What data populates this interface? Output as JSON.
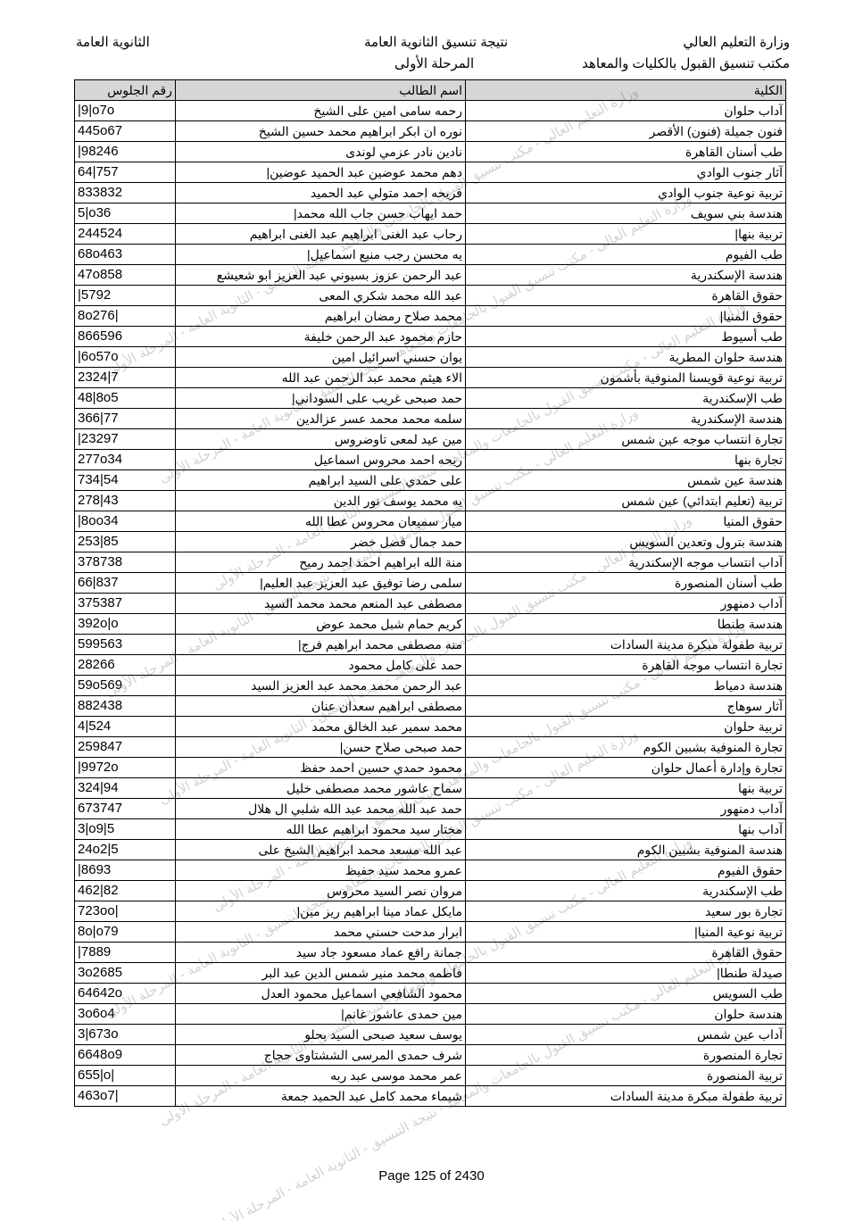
{
  "header": {
    "ministry": "وزارة التعليم العالي",
    "office": "مكتب تنسيق القبول بالكليات والمعاهد",
    "title": "نتيجة تنسيق الثانوية العامة",
    "stage": "المرحلة الأولى",
    "certificate": "الثانوية العامة"
  },
  "table": {
    "columns": {
      "seat": "رقم الجلوس",
      "name": "اسم الطالب",
      "college": "الكلية"
    },
    "rows": [
      {
        "seat": "|9|o7o",
        "name": "رحمه سامى امين على الشيخ",
        "college": "آداب حلوان"
      },
      {
        "seat": "445o67",
        "name": "نوره ان ابكر ابراهيم محمد حسين الشيخ",
        "college": "فنون جميلة (فنون) الأقصر"
      },
      {
        "seat": "|98246",
        "name": "نادين نادر عزمي لوندى",
        "college": "طب أسنان القاهرة"
      },
      {
        "seat": "64|757",
        "name": "دهم محمد عوضين عبد الحميد عوضين|",
        "college": "آثار جنوب الوادي"
      },
      {
        "seat": "833832",
        "name": "فريحه احمد متولي عبد الحميد",
        "college": "تربية نوعية جنوب الوادي"
      },
      {
        "seat": "5|o36",
        "name": "حمد ايهاب حسن جاب الله محمد|",
        "college": "هندسة بني سويف"
      },
      {
        "seat": "244524",
        "name": "رحاب عبد الغنى ابراهيم عبد الغنى ابراهيم",
        "college": "تربية بنها|"
      },
      {
        "seat": "68o463",
        "name": "يه محسن رجب منيع اسماعيل|",
        "college": "طب الفيوم"
      },
      {
        "seat": "47o858",
        "name": "عبد الرحمن عزوز بسيوني عبد العزيز ابو شعيشع",
        "college": "هندسة الإسكندرية"
      },
      {
        "seat": "|5792",
        "name": "عبد الله محمد شكري المعى",
        "college": "حقوق القاهرة"
      },
      {
        "seat": "8o276|",
        "name": "محمد صلاح رمضان ابراهيم",
        "college": "حقوق المنيا|"
      },
      {
        "seat": "866596",
        "name": "حازم محمود عبد الرحمن خليفة",
        "college": "طب أسيوط"
      },
      {
        "seat": "|6o57o",
        "name": "يوان حسني اسرائيل امين",
        "college": "هندسة حلوان المطرية"
      },
      {
        "seat": "2324|7",
        "name": "الاء هيثم محمد عبد الرحمن عبد الله",
        "college": "تربية نوعية قويسنا المنوفية بأشمون"
      },
      {
        "seat": "48|8o5",
        "name": "حمد صبحى غريب على السوداني|",
        "college": "طب الإسكندرية"
      },
      {
        "seat": "366|77",
        "name": "سلمه محمد محمد عسر عزالدين",
        "college": "هندسة الإسكندرية"
      },
      {
        "seat": "|23297",
        "name": "مين عيد لمعى تاوضروس",
        "college": "تجارة انتساب موجه عين شمس"
      },
      {
        "seat": "277o34",
        "name": "ريحه احمد محروس اسماعيل",
        "college": "تجارة بنها"
      },
      {
        "seat": "734|54",
        "name": "على حمدي على السيد ابراهيم",
        "college": "هندسة عين شمس"
      },
      {
        "seat": "278|43",
        "name": "يه محمد يوسف نور الدين",
        "college": "تربية (تعليم ابتدائي) عين شمس"
      },
      {
        "seat": "|8oo34",
        "name": "ميار سميعان محروس عطا الله",
        "college": "حقوق المنيا"
      },
      {
        "seat": "253|85",
        "name": "حمد جمال فضل خضر",
        "college": "هندسة بترول وتعدين السويس"
      },
      {
        "seat": "378738",
        "name": "منة الله ابراهيم احمد احمد رميح",
        "college": "آداب انتساب موجه الإسكندرية"
      },
      {
        "seat": "66|837",
        "name": "سلمى رضا توفيق عبد العزيز عبد العليم|",
        "college": "طب أسنان المنصورة"
      },
      {
        "seat": "375387",
        "name": "مصطفى عبد المنعم محمد محمد السيد",
        "college": "آداب دمنهور"
      },
      {
        "seat": "392o|o",
        "name": "كريم حمام شبل محمد عوض",
        "college": "هندسة طنطا"
      },
      {
        "seat": "599563",
        "name": "منه مصطفى محمد ابراهيم فرج|",
        "college": "تربية طفولة مبكرة مدينة السادات"
      },
      {
        "seat": "28266",
        "name": "حمد على كامل محمود",
        "college": "تجارة انتساب موجه القاهرة"
      },
      {
        "seat": "59o569",
        "name": "عبد الرحمن محمد محمد عبد العزيز السيد",
        "college": "هندسة دمياط"
      },
      {
        "seat": "882438",
        "name": "مصطفى ابراهيم سعدان عنان",
        "college": "آثار سوهاج"
      },
      {
        "seat": "4|524",
        "name": "محمد سمير عبد الخالق محمد",
        "college": "تربية حلوان"
      },
      {
        "seat": "259847",
        "name": "حمد صبحى صلاح حسن|",
        "college": "تجارة المنوفية بشبين الكوم"
      },
      {
        "seat": "|9972o",
        "name": "محمود حمدي حسين احمد حفظ",
        "college": "تجارة وإدارة أعمال حلوان"
      },
      {
        "seat": "324|94",
        "name": "سماح عاشور محمد مصطفى خليل",
        "college": "تربية بنها"
      },
      {
        "seat": "673747",
        "name": "حمد عبد الله محمد عبد الله شلبي ال هلال",
        "college": "آداب دمنهور"
      },
      {
        "seat": "3|o9|5",
        "name": "مختار سيد محمود ابراهيم عطا الله",
        "college": "آداب بنها"
      },
      {
        "seat": "24o2|5",
        "name": "عبد الله مسعد محمد ابراهيم الشيخ على",
        "college": "هندسة المنوفية بشبين الكوم"
      },
      {
        "seat": "|8693",
        "name": "عمرو محمد سيد حفيظ",
        "college": "حقوق الفيوم"
      },
      {
        "seat": "462|82",
        "name": "مروان نصر السيد محروس",
        "college": "طب الإسكندرية"
      },
      {
        "seat": "723oo|",
        "name": "مايكل عماد مينا ابراهيم ريز مين|",
        "college": "تجارة بور سعيد"
      },
      {
        "seat": "8o|o79",
        "name": "ابرار مدحت حسني محمد",
        "college": "تربية نوعية المنيا|"
      },
      {
        "seat": "|7889",
        "name": "جمانة رافع عماد مسعود جاد سيد",
        "college": "حقوق القاهرة"
      },
      {
        "seat": "3o2685",
        "name": "فاطمه محمد منير شمس الدين عبد البر",
        "college": "صيدلة طنطا|"
      },
      {
        "seat": "64642o",
        "name": "محمود الشافعي اسماعيل محمود العدل",
        "college": "طب السويس"
      },
      {
        "seat": "3o6o4",
        "name": "مين حمدى عاشور غانم|",
        "college": "هندسة حلوان"
      },
      {
        "seat": "3|673o",
        "name": "يوسف سعيد صبحى السيد بحلو",
        "college": "آداب عين شمس"
      },
      {
        "seat": "6648o9",
        "name": "شرف حمدى المرسى الششتاوى حجاج",
        "college": "تجارة المنصورة"
      },
      {
        "seat": "655|o|",
        "name": "عمر محمد موسى عبد ربه",
        "college": "تربية المنصورة"
      },
      {
        "seat": "463o7|",
        "name": "شيماء محمد كامل عبد الحميد جمعة",
        "college": "تربية طفولة مبكرة مدينة السادات"
      }
    ]
  },
  "watermark": "وزارة التعليم العالى - مكتب تنسيق القبول بالجامعات والمعاهد - نتيجة التنسيق - الثانوية العامة - المرحلة الأولى",
  "footer": {
    "page": "Page 125 of 2430"
  }
}
